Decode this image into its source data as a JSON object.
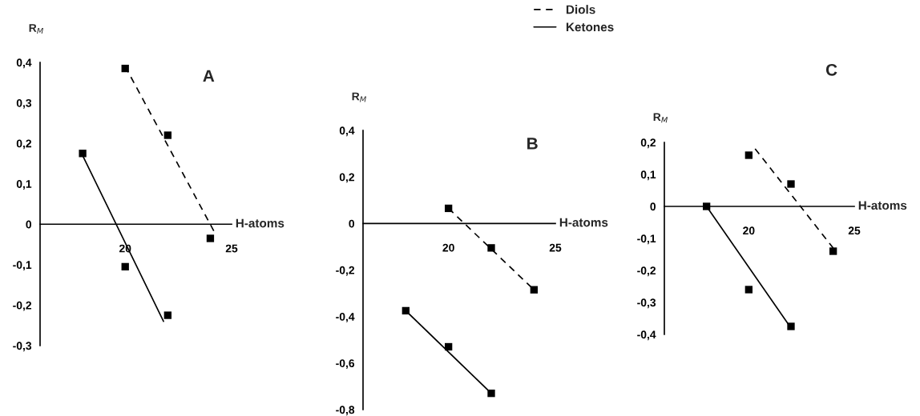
{
  "chart_data": [
    {
      "type": "scatter",
      "title": "A",
      "xlabel": "H-atoms",
      "ylabel": "R$_{M}$",
      "xlim": [
        16,
        25
      ],
      "xticks": [
        20,
        25
      ],
      "ylim": [
        -0.3,
        0.4
      ],
      "yticks": [
        {
          "value": -0.3,
          "label": "-0,3"
        },
        {
          "value": -0.2,
          "label": "-0,2"
        },
        {
          "value": -0.1,
          "label": "-0,1"
        },
        0,
        {
          "value": 0.1,
          "label": "0,1"
        },
        {
          "value": 0.2,
          "label": "0,2"
        },
        {
          "value": 0.3,
          "label": "0,3"
        },
        {
          "value": 0.4,
          "label": "0,4"
        }
      ],
      "grid": false,
      "legend": "top",
      "marker": "square",
      "series": [
        {
          "color": "#000000",
          "x": [
            18,
            20,
            22
          ],
          "values": [
            0.175,
            -0.105,
            -0.225
          ]
        },
        {
          "color": "#000000",
          "x": [
            20,
            22,
            24
          ],
          "values": [
            0.385,
            0.22,
            -0.035
          ]
        },
        {
          "type": "line",
          "name": "Diols",
          "color": "#000000",
          "line_style": "dashed",
          "marker": "none",
          "x": [
            20,
            24.2
          ],
          "values": [
            0.39,
            -0.02
          ]
        },
        {
          "type": "line",
          "name": "Ketones",
          "color": "#000000",
          "line_style": "solid",
          "marker": "none",
          "x": [
            18,
            21.8
          ],
          "values": [
            0.17,
            -0.24
          ]
        }
      ]
    },
    {
      "type": "scatter",
      "title": "B",
      "xlabel": "H-atoms",
      "ylabel": "R$_{M}$",
      "xlim": [
        16,
        25
      ],
      "xticks": [
        20,
        25
      ],
      "ylim": [
        -0.8,
        0.4
      ],
      "yticks": [
        {
          "value": -0.8,
          "label": "-0,8"
        },
        {
          "value": -0.6,
          "label": "-0,6"
        },
        {
          "value": -0.4,
          "label": "-0,4"
        },
        {
          "value": -0.2,
          "label": "-0,2"
        },
        0,
        {
          "value": 0.2,
          "label": "0,2"
        },
        {
          "value": 0.4,
          "label": "0,4"
        }
      ],
      "grid": false,
      "marker": "square",
      "series": [
        {
          "color": "#000000",
          "x": [
            18,
            20,
            22
          ],
          "values": [
            -0.375,
            -0.53,
            -0.73
          ]
        },
        {
          "color": "#000000",
          "x": [
            20,
            22,
            24
          ],
          "values": [
            0.065,
            -0.105,
            -0.285
          ]
        },
        {
          "type": "line",
          "color": "#000000",
          "line_style": "dashed",
          "marker": "none",
          "x": [
            20,
            24
          ],
          "values": [
            0.065,
            -0.285
          ]
        },
        {
          "type": "line",
          "color": "#000000",
          "line_style": "solid",
          "marker": "none",
          "x": [
            18,
            22
          ],
          "values": [
            -0.375,
            -0.73
          ]
        }
      ]
    },
    {
      "type": "scatter",
      "title": "C",
      "xlabel": "H-atoms",
      "ylabel": "R$_{M}$",
      "xlim": [
        16,
        25
      ],
      "xticks": [
        20,
        25
      ],
      "ylim": [
        -0.4,
        0.2
      ],
      "yticks": [
        {
          "value": -0.4,
          "label": "-0,4"
        },
        {
          "value": -0.3,
          "label": "-0,3"
        },
        {
          "value": -0.2,
          "label": "-0,2"
        },
        {
          "value": -0.1,
          "label": "-0,1"
        },
        0,
        {
          "value": 0.1,
          "label": "0,1"
        },
        {
          "value": 0.2,
          "label": "0,2"
        }
      ],
      "grid": false,
      "marker": "square",
      "series": [
        {
          "color": "#000000",
          "x": [
            18,
            20,
            22
          ],
          "values": [
            0,
            -0.26,
            -0.375
          ]
        },
        {
          "color": "#000000",
          "x": [
            20,
            22,
            24
          ],
          "values": [
            0.16,
            0.07,
            -0.14
          ]
        },
        {
          "type": "line",
          "color": "#000000",
          "line_style": "solid",
          "marker": "none",
          "x": [
            18,
            22
          ],
          "values": [
            0,
            -0.38
          ]
        },
        {
          "type": "line",
          "color": "#000000",
          "line_style": "dashed",
          "marker": "none",
          "x": [
            20.3,
            24
          ],
          "values": [
            0.18,
            -0.13
          ]
        }
      ]
    }
  ]
}
